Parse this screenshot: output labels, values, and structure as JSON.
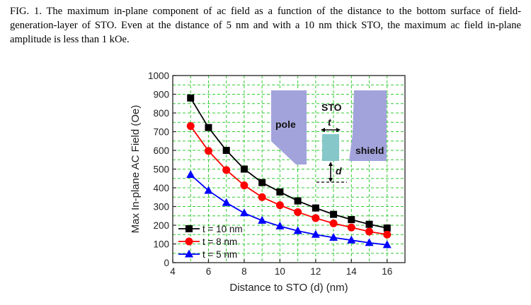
{
  "caption": "FIG. 1.  The maximum in-plane component of ac field as a function of the distance to the bottom surface of field-generation-layer of STO. Even at the distance of 5 nm and with a 10 nm thick STO, the maximum ac field in-plane amplitude is less than 1 kOe.",
  "chart_data": {
    "type": "line",
    "title": "",
    "xlabel": "Distance to STO (d) (nm)",
    "ylabel": "Max In-plane AC Field (Oe)",
    "xlim": [
      4,
      17
    ],
    "ylim": [
      0,
      1000
    ],
    "xticks": [
      4,
      6,
      8,
      10,
      12,
      14,
      16
    ],
    "yticks": [
      0,
      100,
      200,
      300,
      400,
      500,
      600,
      700,
      800,
      900,
      1000
    ],
    "grid": true,
    "legend_position": "bottom-left",
    "x": [
      5,
      6,
      7,
      8,
      9,
      10,
      11,
      12,
      13,
      14,
      15,
      16
    ],
    "series": [
      {
        "name": "t = 10 nm",
        "color": "#000000",
        "marker": "square",
        "values": [
          880,
          722,
          600,
          500,
          428,
          378,
          330,
          292,
          258,
          230,
          205,
          185
        ]
      },
      {
        "name": "t = 8 nm",
        "color": "#ff0000",
        "marker": "circle",
        "values": [
          730,
          597,
          495,
          413,
          350,
          307,
          270,
          238,
          210,
          188,
          166,
          150
        ]
      },
      {
        "name": "t = 5 nm",
        "color": "#0000ff",
        "marker": "triangle",
        "values": [
          470,
          385,
          320,
          265,
          225,
          195,
          170,
          150,
          134,
          120,
          106,
          95
        ]
      }
    ],
    "inset": {
      "pole_label": "pole",
      "sto_label": "STO",
      "shield_label": "shield",
      "t_label": "t",
      "d_label": "d",
      "pole_color": "#a3a3dc",
      "sto_color": "#86c7c9"
    }
  }
}
